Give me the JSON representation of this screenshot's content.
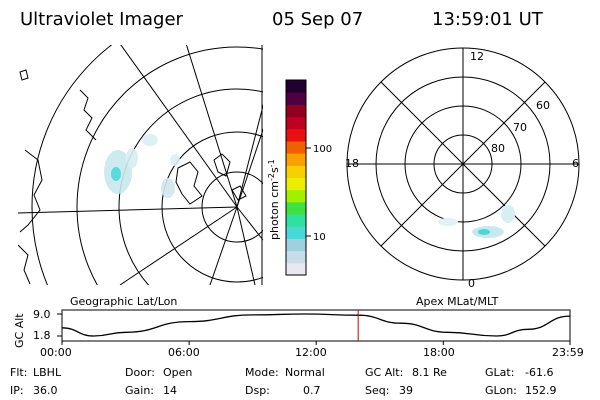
{
  "header": {
    "instrument": "Ultraviolet Imager",
    "date": "05 Sep 07",
    "time": "13:59:01 UT"
  },
  "colorbar": {
    "unit_label": "photon cm⁻²s⁻¹",
    "unit_main": "photon cm",
    "unit_sup1": "-2",
    "unit_mid": "s",
    "unit_sup2": "-1",
    "tick_labels": [
      "100",
      "10"
    ],
    "scale": "log",
    "colors": [
      "#e8e8f0",
      "#c8dde8",
      "#9fd0e0",
      "#48d8d8",
      "#30e0a0",
      "#40e040",
      "#a0f000",
      "#e8f000",
      "#f8d000",
      "#f8a000",
      "#f06000",
      "#e81010",
      "#c00020",
      "#900020",
      "#500040",
      "#200030"
    ]
  },
  "geo_map": {
    "caption": "Geographic Lat/Lon"
  },
  "polar": {
    "caption": "Apex MLat/MLT",
    "mlt_labels": {
      "top": "12",
      "left": "18",
      "right": "6",
      "bottom": "0"
    },
    "lat_labels": [
      "60",
      "70",
      "80"
    ]
  },
  "alt_chart": {
    "ylabel": "GC Alt",
    "yticks": [
      "9.0",
      "1.8"
    ],
    "xticks": [
      "00:00",
      "06:00",
      "12:00",
      "18:00",
      "23:59"
    ],
    "marker_color": "#cc0000"
  },
  "chart_data": {
    "type": "line",
    "xlabel": "",
    "ylabel": "GC Alt",
    "x_range": [
      "00:00",
      "23:59"
    ],
    "ylim": [
      1.8,
      9.0
    ],
    "x_hours": [
      0,
      1.5,
      3,
      6,
      9,
      11.5,
      14,
      16,
      18.2,
      20.5,
      22,
      23.98
    ],
    "values": [
      4.5,
      1.8,
      3.0,
      6.5,
      8.7,
      9.0,
      8.6,
      6.0,
      3.0,
      1.8,
      4.0,
      8.3
    ],
    "current_marker_hour": 13.98
  },
  "info": {
    "filter_label": "Flt:",
    "filter_value": "LBHL",
    "ip_label": "IP:",
    "ip_value": "36.0",
    "door_label": "Door:",
    "door_value": "Open",
    "gain_label": "Gain:",
    "gain_value": "14",
    "mode_label": "Mode:",
    "mode_value": "Normal",
    "dsp_label": "Dsp:",
    "dsp_value": "0.7",
    "gcalt_label": "GC Alt:",
    "gcalt_value": "8.1 Re",
    "seq_label": "Seq:",
    "seq_value": "39",
    "glat_label": "GLat:",
    "glat_value": "-61.6",
    "glon_label": "GLon:",
    "glon_value": "152.9"
  }
}
